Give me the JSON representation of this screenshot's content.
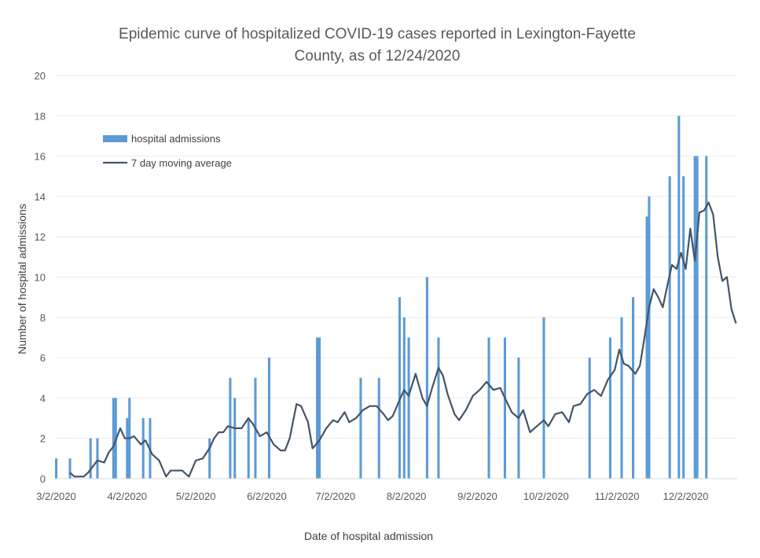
{
  "chart_data": {
    "type": "bar",
    "title_line1": "Epidemic curve of hospitalized COVID-19 cases reported in Lexington-Fayette",
    "title_line2": "County, as of 12/24/2020",
    "xlabel": "Date of hospital admission",
    "ylabel": "Number of hospital admissions",
    "ylim": [
      0,
      20
    ],
    "yticks": [
      "0",
      "2",
      "4",
      "6",
      "8",
      "10",
      "12",
      "14",
      "16",
      "18",
      "20"
    ],
    "x_range": [
      "3/2/2020",
      "12/24/2020"
    ],
    "xticks": [
      "3/2/2020",
      "4/2/2020",
      "5/2/2020",
      "6/2/2020",
      "7/2/2020",
      "8/2/2020",
      "9/2/2020",
      "10/2/2020",
      "11/2/2020",
      "12/2/2020"
    ],
    "legend_position": "top-left",
    "series": [
      {
        "name": "hospital admissions",
        "type": "bar",
        "color": "#5B9BD5",
        "points": [
          [
            "3/2/2020",
            1
          ],
          [
            "3/8/2020",
            1
          ],
          [
            "3/17/2020",
            2
          ],
          [
            "3/20/2020",
            2
          ],
          [
            "3/27/2020",
            4
          ],
          [
            "3/28/2020",
            4
          ],
          [
            "4/2/2020",
            3
          ],
          [
            "4/3/2020",
            4
          ],
          [
            "4/9/2020",
            3
          ],
          [
            "4/12/2020",
            3
          ],
          [
            "5/8/2020",
            2
          ],
          [
            "5/17/2020",
            5
          ],
          [
            "5/19/2020",
            4
          ],
          [
            "5/25/2020",
            3
          ],
          [
            "5/28/2020",
            5
          ],
          [
            "6/3/2020",
            6
          ],
          [
            "6/24/2020",
            7
          ],
          [
            "6/25/2020",
            7
          ],
          [
            "7/13/2020",
            5
          ],
          [
            "7/21/2020",
            5
          ],
          [
            "7/30/2020",
            9
          ],
          [
            "8/1/2020",
            8
          ],
          [
            "8/3/2020",
            7
          ],
          [
            "8/11/2020",
            10
          ],
          [
            "8/16/2020",
            7
          ],
          [
            "9/7/2020",
            7
          ],
          [
            "9/14/2020",
            7
          ],
          [
            "9/20/2020",
            6
          ],
          [
            "10/1/2020",
            8
          ],
          [
            "10/21/2020",
            6
          ],
          [
            "10/30/2020",
            7
          ],
          [
            "11/4/2020",
            8
          ],
          [
            "11/9/2020",
            9
          ],
          [
            "11/15/2020",
            13
          ],
          [
            "11/16/2020",
            14
          ],
          [
            "11/25/2020",
            15
          ],
          [
            "11/29/2020",
            18
          ],
          [
            "12/1/2020",
            15
          ],
          [
            "12/6/2020",
            16
          ],
          [
            "12/7/2020",
            16
          ],
          [
            "12/11/2020",
            16
          ]
        ]
      },
      {
        "name": "7 day moving average",
        "type": "line",
        "color": "#44546A",
        "points": [
          [
            "3/8/2020",
            0.3
          ],
          [
            "3/10/2020",
            0.1
          ],
          [
            "3/14/2020",
            0.1
          ],
          [
            "3/16/2020",
            0.3
          ],
          [
            "3/20/2020",
            0.9
          ],
          [
            "3/23/2020",
            0.8
          ],
          [
            "3/25/2020",
            1.3
          ],
          [
            "3/27/2020",
            1.6
          ],
          [
            "3/30/2020",
            2.5
          ],
          [
            "4/1/2020",
            2.0
          ],
          [
            "4/3/2020",
            2.0
          ],
          [
            "4/5/2020",
            2.1
          ],
          [
            "4/8/2020",
            1.7
          ],
          [
            "4/10/2020",
            1.9
          ],
          [
            "4/13/2020",
            1.2
          ],
          [
            "4/16/2020",
            0.9
          ],
          [
            "4/19/2020",
            0.1
          ],
          [
            "4/21/2020",
            0.4
          ],
          [
            "4/26/2020",
            0.4
          ],
          [
            "4/29/2020",
            0.1
          ],
          [
            "5/2/2020",
            0.9
          ],
          [
            "5/5/2020",
            1.0
          ],
          [
            "5/8/2020",
            1.5
          ],
          [
            "5/10/2020",
            2.0
          ],
          [
            "5/12/2020",
            2.3
          ],
          [
            "5/14/2020",
            2.3
          ],
          [
            "5/16/2020",
            2.6
          ],
          [
            "5/19/2020",
            2.5
          ],
          [
            "5/22/2020",
            2.5
          ],
          [
            "5/25/2020",
            3.0
          ],
          [
            "5/27/2020",
            2.7
          ],
          [
            "5/30/2020",
            2.1
          ],
          [
            "6/2/2020",
            2.3
          ],
          [
            "6/5/2020",
            1.7
          ],
          [
            "6/8/2020",
            1.4
          ],
          [
            "6/10/2020",
            1.4
          ],
          [
            "6/12/2020",
            2.0
          ],
          [
            "6/15/2020",
            3.7
          ],
          [
            "6/17/2020",
            3.6
          ],
          [
            "6/20/2020",
            2.8
          ],
          [
            "6/22/2020",
            1.5
          ],
          [
            "6/25/2020",
            1.9
          ],
          [
            "6/28/2020",
            2.5
          ],
          [
            "7/1/2020",
            2.9
          ],
          [
            "7/3/2020",
            2.8
          ],
          [
            "7/6/2020",
            3.3
          ],
          [
            "7/8/2020",
            2.8
          ],
          [
            "7/11/2020",
            3.0
          ],
          [
            "7/14/2020",
            3.4
          ],
          [
            "7/17/2020",
            3.6
          ],
          [
            "7/20/2020",
            3.6
          ],
          [
            "7/23/2020",
            3.2
          ],
          [
            "7/25/2020",
            2.9
          ],
          [
            "7/27/2020",
            3.1
          ],
          [
            "7/30/2020",
            3.9
          ],
          [
            "8/1/2020",
            4.4
          ],
          [
            "8/3/2020",
            4.1
          ],
          [
            "8/6/2020",
            5.2
          ],
          [
            "8/9/2020",
            4.0
          ],
          [
            "8/11/2020",
            3.6
          ],
          [
            "8/13/2020",
            4.4
          ],
          [
            "8/16/2020",
            5.5
          ],
          [
            "8/18/2020",
            5.1
          ],
          [
            "8/20/2020",
            4.2
          ],
          [
            "8/23/2020",
            3.2
          ],
          [
            "8/25/2020",
            2.9
          ],
          [
            "8/28/2020",
            3.4
          ],
          [
            "8/31/2020",
            4.1
          ],
          [
            "9/3/2020",
            4.4
          ],
          [
            "9/6/2020",
            4.8
          ],
          [
            "9/9/2020",
            4.4
          ],
          [
            "9/12/2020",
            4.5
          ],
          [
            "9/14/2020",
            4.0
          ],
          [
            "9/17/2020",
            3.3
          ],
          [
            "9/20/2020",
            3.0
          ],
          [
            "9/22/2020",
            3.4
          ],
          [
            "9/25/2020",
            2.3
          ],
          [
            "9/28/2020",
            2.6
          ],
          [
            "10/1/2020",
            2.9
          ],
          [
            "10/3/2020",
            2.6
          ],
          [
            "10/6/2020",
            3.2
          ],
          [
            "10/9/2020",
            3.3
          ],
          [
            "10/12/2020",
            2.8
          ],
          [
            "10/14/2020",
            3.6
          ],
          [
            "10/17/2020",
            3.7
          ],
          [
            "10/20/2020",
            4.2
          ],
          [
            "10/23/2020",
            4.4
          ],
          [
            "10/26/2020",
            4.1
          ],
          [
            "10/29/2020",
            4.9
          ],
          [
            "11/1/2020",
            5.4
          ],
          [
            "11/3/2020",
            6.4
          ],
          [
            "11/5/2020",
            5.7
          ],
          [
            "11/7/2020",
            5.6
          ],
          [
            "11/10/2020",
            5.2
          ],
          [
            "11/12/2020",
            5.6
          ],
          [
            "11/14/2020",
            7.0
          ],
          [
            "11/16/2020",
            8.5
          ],
          [
            "11/18/2020",
            9.4
          ],
          [
            "11/20/2020",
            9.0
          ],
          [
            "11/22/2020",
            8.5
          ],
          [
            "11/24/2020",
            9.6
          ],
          [
            "11/26/2020",
            10.6
          ],
          [
            "11/28/2020",
            10.4
          ],
          [
            "11/30/2020",
            11.2
          ],
          [
            "12/2/2020",
            10.4
          ],
          [
            "12/4/2020",
            12.4
          ],
          [
            "12/6/2020",
            10.8
          ],
          [
            "12/8/2020",
            13.2
          ],
          [
            "12/10/2020",
            13.3
          ],
          [
            "12/12/2020",
            13.7
          ],
          [
            "12/14/2020",
            13.1
          ],
          [
            "12/16/2020",
            11.0
          ],
          [
            "12/18/2020",
            9.8
          ],
          [
            "12/20/2020",
            10.0
          ],
          [
            "12/22/2020",
            8.4
          ],
          [
            "12/24/2020",
            7.7
          ]
        ]
      }
    ]
  }
}
